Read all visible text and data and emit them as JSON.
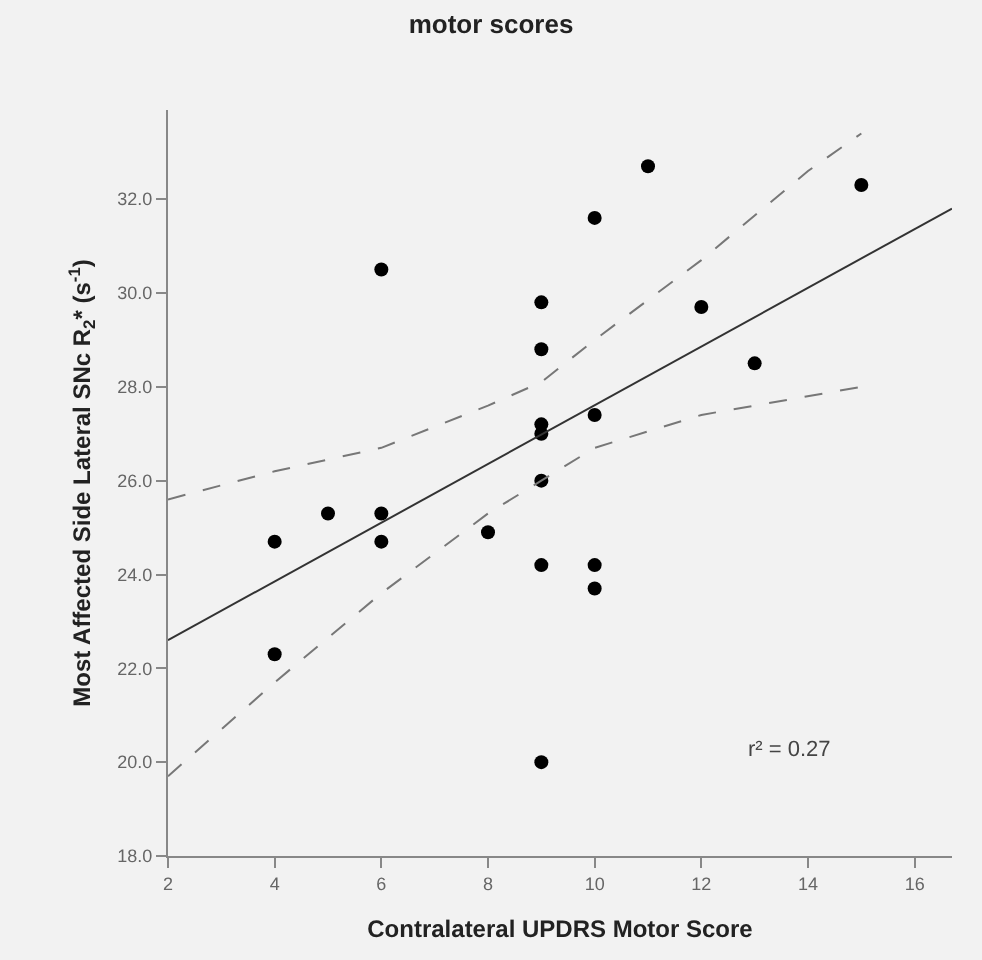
{
  "chart_data": {
    "type": "scatter",
    "title": "motor scores",
    "xlabel": "Contralateral UPDRS Motor Score",
    "ylabel": "Most Affected Side Lateral SNc R$_{2}$* (s$^{-1}$)",
    "annotations": [
      "r² = 0.27"
    ],
    "xlim": [
      2,
      16.7
    ],
    "xticks": [
      2,
      4,
      6,
      8,
      10,
      12,
      14,
      16
    ],
    "ylim": [
      18,
      33.9
    ],
    "yticks": [
      {
        "value": 18,
        "label": "18.0"
      },
      {
        "value": 20,
        "label": "20.0"
      },
      {
        "value": 22,
        "label": "22.0"
      },
      {
        "value": 24,
        "label": "24.0"
      },
      {
        "value": 26,
        "label": "26.0"
      },
      {
        "value": 28,
        "label": "28.0"
      },
      {
        "value": 30,
        "label": "30.0"
      },
      {
        "value": 32,
        "label": "32.0"
      }
    ],
    "grid": false,
    "series": [
      {
        "marker": "circle",
        "color": "#000000",
        "x": [
          4,
          4,
          5,
          6,
          6,
          6,
          8,
          9,
          9,
          9,
          9,
          9,
          9,
          9,
          10,
          10,
          10,
          10,
          11,
          12,
          13,
          15
        ],
        "values": [
          24.7,
          22.3,
          25.3,
          30.5,
          25.3,
          24.7,
          24.9,
          29.8,
          28.8,
          27.2,
          27.0,
          26.0,
          24.2,
          20.0,
          31.6,
          27.4,
          24.2,
          23.7,
          32.7,
          29.7,
          28.5,
          32.3
        ]
      },
      {
        "type": "line",
        "color": "#333333",
        "line_style": "solid",
        "x": [
          2,
          16.7
        ],
        "values": [
          22.6,
          31.8
        ]
      },
      {
        "type": "line",
        "color": "#777777",
        "line_style": "dashed",
        "x": [
          2,
          4,
          6,
          8,
          9,
          10,
          12,
          14,
          15
        ],
        "values": [
          25.6,
          26.2,
          26.7,
          27.6,
          28.1,
          29.0,
          30.7,
          32.6,
          33.4
        ]
      },
      {
        "type": "line",
        "color": "#777777",
        "line_style": "dashed",
        "x": [
          2,
          4,
          6,
          8,
          9,
          10,
          12,
          15
        ],
        "values": [
          19.7,
          21.7,
          23.6,
          25.3,
          26.0,
          26.7,
          27.4,
          28.0
        ]
      }
    ]
  }
}
